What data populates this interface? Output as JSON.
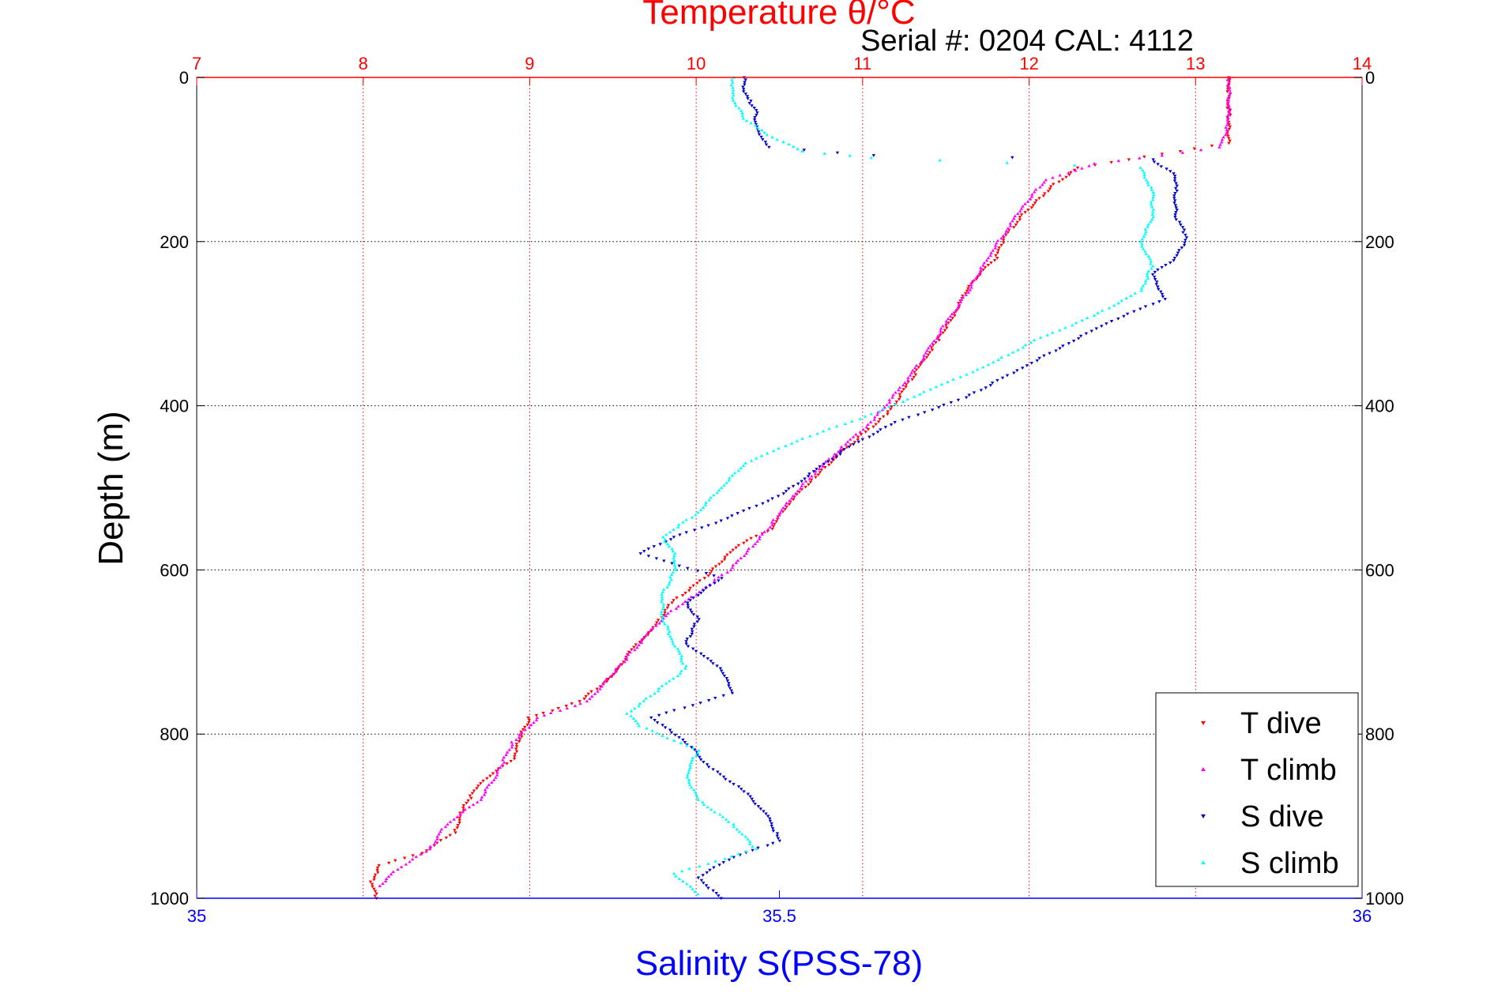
{
  "chart_data": {
    "type": "scatter",
    "title": "Temperature θ/°C",
    "subtitle": "Serial #: 0204  CAL: 4112",
    "xlabel": "Salinity S(PSS-78)",
    "ylabel": "Depth (m)",
    "top_axis": {
      "range": [
        7,
        14
      ],
      "ticks": [
        7,
        8,
        9,
        10,
        11,
        12,
        13,
        14
      ],
      "color": "#ff0000"
    },
    "bottom_axis": {
      "range": [
        35,
        36
      ],
      "ticks": [
        35,
        35.5,
        36
      ],
      "tick_labels": [
        "35",
        "35.5",
        "36"
      ],
      "color": "#0000ff"
    },
    "y_axis": {
      "range": [
        0,
        1000
      ],
      "ticks": [
        0,
        200,
        400,
        600,
        800,
        1000
      ],
      "inverted": true
    },
    "grid": {
      "temperature_vertical": true,
      "depth_horizontal": true
    },
    "legend": {
      "position": "bottom-right"
    },
    "series": [
      {
        "name": "T dive",
        "axis": "temperature",
        "color": "#ff0000",
        "marker": "triangle-down",
        "points": [
          [
            13.2,
            0
          ],
          [
            13.2,
            20
          ],
          [
            13.2,
            40
          ],
          [
            13.2,
            60
          ],
          [
            13.2,
            80
          ],
          [
            12.9,
            90
          ],
          [
            12.6,
            100
          ],
          [
            12.3,
            110
          ],
          [
            12.15,
            130
          ],
          [
            12.05,
            150
          ],
          [
            11.95,
            170
          ],
          [
            11.85,
            195
          ],
          [
            11.8,
            220
          ],
          [
            11.7,
            240
          ],
          [
            11.62,
            260
          ],
          [
            11.55,
            290
          ],
          [
            11.45,
            320
          ],
          [
            11.35,
            350
          ],
          [
            11.25,
            380
          ],
          [
            11.15,
            410
          ],
          [
            11.0,
            435
          ],
          [
            10.85,
            460
          ],
          [
            10.7,
            490
          ],
          [
            10.55,
            520
          ],
          [
            10.45,
            550
          ],
          [
            10.25,
            570
          ],
          [
            10.15,
            590
          ],
          [
            10.05,
            610
          ],
          [
            9.85,
            640
          ],
          [
            9.75,
            670
          ],
          [
            9.6,
            700
          ],
          [
            9.5,
            730
          ],
          [
            9.3,
            760
          ],
          [
            9.0,
            780
          ],
          [
            8.95,
            800
          ],
          [
            8.9,
            830
          ],
          [
            8.7,
            860
          ],
          [
            8.6,
            890
          ],
          [
            8.55,
            920
          ],
          [
            8.35,
            945
          ],
          [
            8.1,
            960
          ],
          [
            8.05,
            980
          ],
          [
            8.08,
            1000
          ]
        ]
      },
      {
        "name": "T climb",
        "axis": "temperature",
        "color": "#ff00ff",
        "marker": "triangle-up",
        "points": [
          [
            13.2,
            0
          ],
          [
            13.2,
            25
          ],
          [
            13.2,
            55
          ],
          [
            13.15,
            85
          ],
          [
            12.8,
            95
          ],
          [
            12.4,
            105
          ],
          [
            12.1,
            125
          ],
          [
            11.95,
            160
          ],
          [
            11.85,
            190
          ],
          [
            11.75,
            220
          ],
          [
            11.62,
            265
          ],
          [
            11.5,
            300
          ],
          [
            11.4,
            330
          ],
          [
            11.3,
            360
          ],
          [
            11.18,
            390
          ],
          [
            11.05,
            420
          ],
          [
            10.88,
            450
          ],
          [
            10.72,
            480
          ],
          [
            10.58,
            510
          ],
          [
            10.45,
            545
          ],
          [
            10.3,
            580
          ],
          [
            10.2,
            600
          ],
          [
            10.0,
            630
          ],
          [
            9.85,
            650
          ],
          [
            9.7,
            680
          ],
          [
            9.55,
            715
          ],
          [
            9.35,
            760
          ],
          [
            9.05,
            780
          ],
          [
            8.9,
            810
          ],
          [
            8.8,
            850
          ],
          [
            8.7,
            880
          ],
          [
            8.5,
            910
          ],
          [
            8.4,
            940
          ],
          [
            8.2,
            965
          ],
          [
            8.1,
            985
          ]
        ]
      },
      {
        "name": "S dive",
        "axis": "salinity",
        "color": "#0000cc",
        "marker": "triangle-down",
        "points": [
          [
            35.47,
            0
          ],
          [
            35.47,
            20
          ],
          [
            35.48,
            40
          ],
          [
            35.48,
            60
          ],
          [
            35.49,
            85
          ],
          [
            35.58,
            95
          ],
          [
            35.82,
            100
          ],
          [
            35.84,
            120
          ],
          [
            35.84,
            150
          ],
          [
            35.84,
            170
          ],
          [
            35.85,
            195
          ],
          [
            35.84,
            220
          ],
          [
            35.82,
            240
          ],
          [
            35.83,
            270
          ],
          [
            35.78,
            300
          ],
          [
            35.74,
            330
          ],
          [
            35.7,
            360
          ],
          [
            35.66,
            390
          ],
          [
            35.6,
            420
          ],
          [
            35.56,
            450
          ],
          [
            35.53,
            480
          ],
          [
            35.5,
            510
          ],
          [
            35.45,
            540
          ],
          [
            35.41,
            560
          ],
          [
            35.38,
            580
          ],
          [
            35.45,
            610
          ],
          [
            35.42,
            640
          ],
          [
            35.43,
            660
          ],
          [
            35.42,
            690
          ],
          [
            35.45,
            720
          ],
          [
            35.46,
            750
          ],
          [
            35.39,
            780
          ],
          [
            35.42,
            810
          ],
          [
            35.44,
            840
          ],
          [
            35.47,
            870
          ],
          [
            35.49,
            900
          ],
          [
            35.5,
            930
          ],
          [
            35.46,
            950
          ],
          [
            35.43,
            975
          ],
          [
            35.45,
            1000
          ]
        ]
      },
      {
        "name": "S climb",
        "axis": "salinity",
        "color": "#00ffff",
        "marker": "triangle-up",
        "points": [
          [
            35.46,
            0
          ],
          [
            35.46,
            25
          ],
          [
            35.47,
            50
          ],
          [
            35.49,
            70
          ],
          [
            35.52,
            90
          ],
          [
            35.58,
            98
          ],
          [
            35.81,
            110
          ],
          [
            35.82,
            140
          ],
          [
            35.82,
            170
          ],
          [
            35.81,
            200
          ],
          [
            35.82,
            230
          ],
          [
            35.81,
            260
          ],
          [
            35.77,
            290
          ],
          [
            35.72,
            320
          ],
          [
            35.68,
            350
          ],
          [
            35.63,
            380
          ],
          [
            35.58,
            410
          ],
          [
            35.52,
            440
          ],
          [
            35.47,
            470
          ],
          [
            35.45,
            500
          ],
          [
            35.43,
            530
          ],
          [
            35.4,
            560
          ],
          [
            35.41,
            580
          ],
          [
            35.41,
            600
          ],
          [
            35.4,
            630
          ],
          [
            35.4,
            660
          ],
          [
            35.41,
            690
          ],
          [
            35.42,
            720
          ],
          [
            35.37,
            775
          ],
          [
            35.38,
            790
          ],
          [
            35.43,
            820
          ],
          [
            35.42,
            850
          ],
          [
            35.43,
            880
          ],
          [
            35.46,
            910
          ],
          [
            35.48,
            940
          ],
          [
            35.41,
            970
          ],
          [
            35.43,
            995
          ]
        ]
      }
    ]
  }
}
